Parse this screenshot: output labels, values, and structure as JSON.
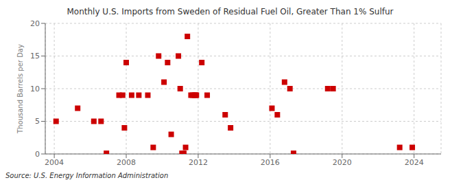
{
  "chart_data": {
    "type": "scatter",
    "title": "Monthly U.S. Imports from Sweden of Residual Fuel Oil, Greater Than 1% Sulfur",
    "ylabel": "Thousand Barrels per Day",
    "annotations": [
      "Source: U.S. Energy Information Administration"
    ],
    "x": [
      2004.1,
      2005.3,
      2006.2,
      2006.6,
      2006.9,
      2007.6,
      2007.8,
      2007.9,
      2008.0,
      2008.3,
      2008.7,
      2009.2,
      2009.5,
      2009.8,
      2010.1,
      2010.3,
      2010.5,
      2010.9,
      2011.0,
      2011.1,
      2011.2,
      2011.3,
      2011.4,
      2011.6,
      2011.7,
      2011.8,
      2011.85,
      2011.9,
      2012.2,
      2012.5,
      2013.5,
      2013.8,
      2016.1,
      2016.4,
      2016.8,
      2017.1,
      2017.3,
      2019.2,
      2019.5,
      2023.2,
      2023.9
    ],
    "values": [
      5.0,
      7.0,
      5.0,
      5.0,
      0.1,
      9.0,
      9.0,
      4.0,
      14.0,
      9.0,
      9.0,
      9.0,
      1.0,
      15.0,
      11.0,
      14.0,
      3.0,
      15.0,
      10.0,
      0.1,
      0.1,
      1.0,
      18.0,
      9.0,
      9.0,
      9.0,
      9.0,
      9.0,
      14.0,
      9.0,
      6.0,
      4.0,
      7.0,
      6.0,
      11.0,
      10.0,
      0.1,
      10.0,
      10.0,
      1.0,
      1.0
    ],
    "color": "#cc0000",
    "marker": "square",
    "xlim": [
      2003.5,
      2025.5
    ],
    "xticks": [
      2004,
      2008,
      2012,
      2016,
      2020,
      2024
    ],
    "ylim": [
      0,
      20
    ],
    "yticks": [
      0,
      5,
      10,
      15,
      20
    ],
    "grid": true
  }
}
